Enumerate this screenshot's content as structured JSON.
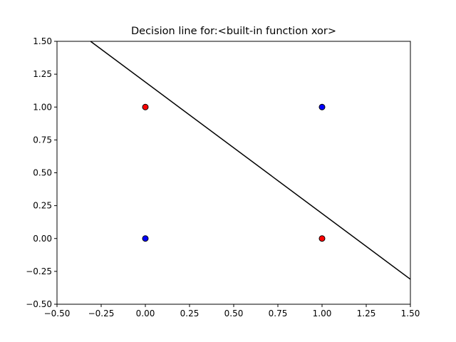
{
  "chart_data": {
    "type": "scatter",
    "title": "Decision line for:<built-in function xor>",
    "xlabel": "",
    "ylabel": "",
    "xlim": [
      -0.5,
      1.5
    ],
    "ylim": [
      -0.5,
      1.5
    ],
    "xticks": [
      -0.5,
      -0.25,
      0.0,
      0.25,
      0.5,
      0.75,
      1.0,
      1.25,
      1.5
    ],
    "xtick_labels": [
      "−0.50",
      "−0.25",
      "0.00",
      "0.25",
      "0.50",
      "0.75",
      "1.00",
      "1.25",
      "1.50"
    ],
    "yticks": [
      -0.5,
      -0.25,
      0.0,
      0.25,
      0.5,
      0.75,
      1.0,
      1.25,
      1.5
    ],
    "ytick_labels": [
      "−0.50",
      "−0.25",
      "0.00",
      "0.25",
      "0.50",
      "0.75",
      "1.00",
      "1.25",
      "1.50"
    ],
    "grid": false,
    "points": [
      {
        "x": 0,
        "y": 0,
        "color": "#0000ff"
      },
      {
        "x": 0,
        "y": 1,
        "color": "#ff0000"
      },
      {
        "x": 1,
        "y": 0,
        "color": "#ff0000"
      },
      {
        "x": 1,
        "y": 1,
        "color": "#0000ff"
      }
    ],
    "decision_line": {
      "points": [
        [
          -0.31,
          1.5
        ],
        [
          1.5,
          -0.31
        ]
      ],
      "color": "#000000"
    }
  }
}
